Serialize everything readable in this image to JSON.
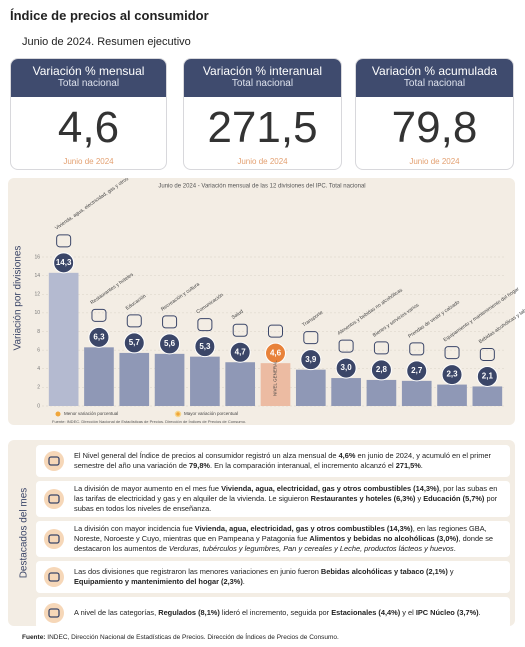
{
  "header": {
    "title": "Índice de precios al consumidor",
    "subtitle": "Junio de 2024. Resumen ejecutivo"
  },
  "cards": [
    {
      "title": "Variación % mensual",
      "subtitle": "Total nacional",
      "value": "4,6",
      "date": "Junio de 2024"
    },
    {
      "title": "Variación % interanual",
      "subtitle": "Total nacional",
      "value": "271,5",
      "date": "Junio de 2024"
    },
    {
      "title": "Variación % acumulada",
      "subtitle": "Total nacional",
      "value": "79,8",
      "date": "Junio de 2024"
    }
  ],
  "chart_data": {
    "type": "bar",
    "title": "Junio de 2024 - Variación mensual de las 12 divisiones del IPC. Total nacional",
    "y_label": "Variación por divisiones",
    "categories": [
      "Vivienda, agua, electricidad, gas y otros combustibles",
      "Restaurantes y hoteles",
      "Educación",
      "Recreación y cultura",
      "Comunicación",
      "Salud",
      "NIVEL GENERAL",
      "Transporte",
      "Alimentos y bebidas no alcohólicas",
      "Bienes y servicios varios",
      "Prendas de vestir y calzado",
      "Equipamiento y mantenimiento del hogar",
      "Bebidas alcohólicas y tabaco"
    ],
    "values": [
      14.3,
      6.3,
      5.7,
      5.6,
      5.3,
      4.7,
      4.6,
      3.9,
      3.0,
      2.8,
      2.7,
      2.3,
      2.1
    ],
    "value_labels": [
      "14,3",
      "6,3",
      "5,7",
      "5,6",
      "5,3",
      "4,7",
      "4,6",
      "3,9",
      "3,0",
      "2,8",
      "2,7",
      "2,3",
      "2,1"
    ],
    "colors": [
      "#b4bad0",
      "#8f98b6",
      "#8f98b6",
      "#8f98b6",
      "#8f98b6",
      "#8f98b6",
      "#ecbba2",
      "#8f98b6",
      "#8f98b6",
      "#8f98b6",
      "#8f98b6",
      "#8f98b6",
      "#8f98b6"
    ],
    "label_colors": [
      "#3b4668",
      "#3b4668",
      "#3b4668",
      "#3b4668",
      "#3b4668",
      "#3b4668",
      "#e8823a",
      "#3b4668",
      "#3b4668",
      "#3b4668",
      "#3b4668",
      "#3b4668",
      "#3b4668"
    ],
    "ylim": [
      0,
      16
    ],
    "yticks": [
      0,
      2,
      4,
      6,
      8,
      10,
      12,
      14,
      16
    ],
    "grid": true,
    "legend": [
      "Menor variación porcentual",
      "Mayor variación porcentual"
    ],
    "source": "Fuente: INDEC. Dirección Nacional de Estadísticas de Precios. Dirección de Índices de Precios de Consumo."
  },
  "highlights": {
    "title": "Destacados del mes",
    "items": [
      [
        {
          "text": "El Nivel general del Índice de precios al consumidor registró un alza mensual de "
        },
        {
          "text": "4,6%",
          "bold": true
        },
        {
          "text": " en junio de 2024, y acumuló en el primer semestre del año una variación de "
        },
        {
          "text": "79,8%",
          "bold": true
        },
        {
          "text": ". En la comparación interanual, el incremento alcanzó el "
        },
        {
          "text": "271,5%",
          "bold": true
        },
        {
          "text": "."
        }
      ],
      [
        {
          "text": "La división de mayor aumento en el mes fue "
        },
        {
          "text": "Vivienda, agua, electricidad, gas y otros combustibles (14,3%)",
          "bold": true
        },
        {
          "text": ", por las subas en las tarifas de electricidad y gas y en alquiler de la vivienda. Le siguieron "
        },
        {
          "text": "Restaurantes y hoteles (6,3%)",
          "bold": true
        },
        {
          "text": " y "
        },
        {
          "text": "Educación (5,7%)",
          "bold": true
        },
        {
          "text": " por subas en todos los niveles de enseñanza."
        }
      ],
      [
        {
          "text": "La división con mayor incidencia fue "
        },
        {
          "text": "Vivienda, agua, electricidad, gas y otros combustibles (14,3%)",
          "bold": true
        },
        {
          "text": ", en las regiones GBA, Noreste, Noroeste y Cuyo, mientras que en Pampeana y Patagonia fue "
        },
        {
          "text": "Alimentos y bebidas no alcohólicas (3,0%)",
          "bold": true
        },
        {
          "text": ", donde se destacaron los aumentos de "
        },
        {
          "text": "Verduras, tubérculos y legumbres, Pan y cereales y Leche, productos lácteos y huevos",
          "italic": true
        },
        {
          "text": "."
        }
      ],
      [
        {
          "text": "Las dos divisiones que registraron las menores variaciones en junio fueron "
        },
        {
          "text": "Bebidas alcohólicas y tabaco (2,1%)",
          "bold": true
        },
        {
          "text": " y "
        },
        {
          "text": "Equipamiento y mantenimiento del hogar (2,3%)",
          "bold": true
        },
        {
          "text": "."
        }
      ],
      [
        {
          "text": "A nivel de las categorías, "
        },
        {
          "text": "Regulados (8,1%)",
          "bold": true
        },
        {
          "text": " lideró el incremento, seguida por "
        },
        {
          "text": "Estacionales (4,4%)",
          "bold": true
        },
        {
          "text": " y el "
        },
        {
          "text": "IPC Núcleo (3,7%)",
          "bold": true
        },
        {
          "text": "."
        }
      ]
    ]
  },
  "footer": [
    {
      "text": "Fuente:",
      "bold": true
    },
    {
      "text": " INDEC, Dirección Nacional de Estadísticas de Precios. Dirección de Índices de Precios de Consumo."
    }
  ]
}
